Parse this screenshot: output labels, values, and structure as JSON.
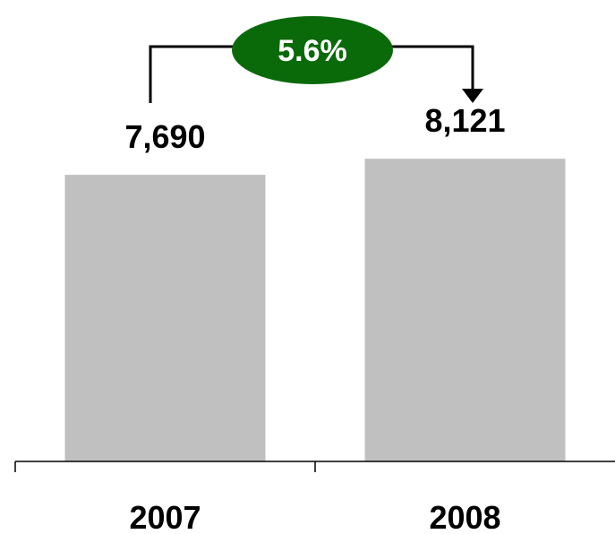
{
  "chart_data": {
    "type": "bar",
    "categories": [
      "2007",
      "2008"
    ],
    "values": [
      7690,
      8121
    ],
    "value_labels": [
      "7,690",
      "8,121"
    ],
    "title": "",
    "xlabel": "",
    "ylabel": "",
    "ylim": [
      0,
      10000
    ],
    "grid": false,
    "legend": "none",
    "annotation": {
      "type": "growth-arrow",
      "from": "2007",
      "to": "2008",
      "label": "5.6%"
    },
    "colors": {
      "bar": "#c0c0c0",
      "badge": "#0a6a0a",
      "badge_text": "#ffffff",
      "axis": "#000000",
      "text": "#000000"
    }
  }
}
